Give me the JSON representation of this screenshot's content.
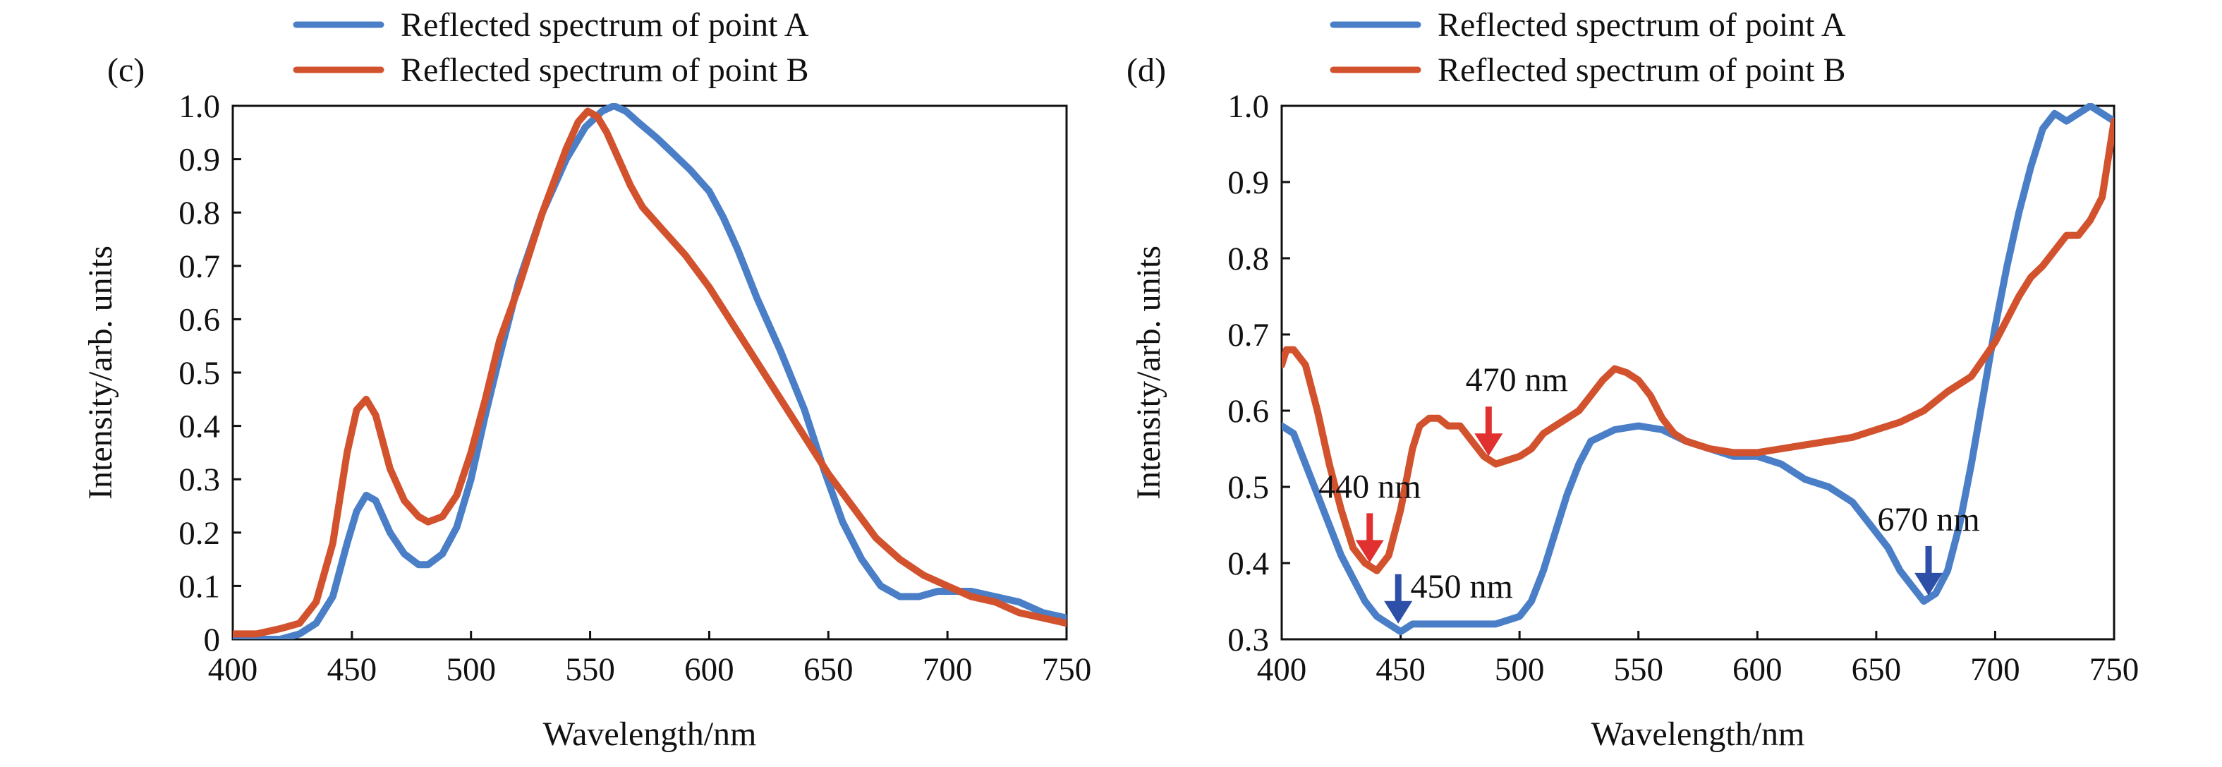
{
  "colors": {
    "point_a": "#4a7fc8",
    "point_b": "#d2522e",
    "arrow_red": "#e03030",
    "arrow_blue": "#2e4fa8",
    "axis": "#111111"
  },
  "chart_data": [
    {
      "type": "line",
      "panel_label": "(c)",
      "xlabel": "Wavelength/nm",
      "ylabel": "Intensity/arb. units",
      "xlim": [
        400,
        750
      ],
      "ylim": [
        0,
        1.0
      ],
      "xticks": [
        "400",
        "450",
        "500",
        "550",
        "600",
        "650",
        "700",
        "750"
      ],
      "yticks": [
        "0",
        "0.1",
        "0.2",
        "0.3",
        "0.4",
        "0.5",
        "0.6",
        "0.7",
        "0.8",
        "0.9",
        "1.0"
      ],
      "grid": false,
      "legend_position": "top",
      "legend": [
        "Reflected spectrum of point A",
        "Reflected spectrum of point B"
      ],
      "series": [
        {
          "name": "Reflected spectrum of point A",
          "color_key": "point_a",
          "x": [
            400,
            410,
            420,
            428,
            435,
            442,
            448,
            452,
            456,
            460,
            466,
            472,
            478,
            482,
            488,
            494,
            500,
            506,
            512,
            520,
            530,
            540,
            548,
            555,
            560,
            565,
            570,
            578,
            585,
            592,
            600,
            606,
            612,
            620,
            630,
            640,
            648,
            656,
            664,
            672,
            680,
            688,
            696,
            704,
            710,
            720,
            730,
            740,
            750
          ],
          "y": [
            0.0,
            0.0,
            0.0,
            0.01,
            0.03,
            0.08,
            0.18,
            0.24,
            0.27,
            0.26,
            0.2,
            0.16,
            0.14,
            0.14,
            0.16,
            0.21,
            0.3,
            0.42,
            0.53,
            0.67,
            0.8,
            0.9,
            0.96,
            0.99,
            1.0,
            0.99,
            0.97,
            0.94,
            0.91,
            0.88,
            0.84,
            0.79,
            0.73,
            0.64,
            0.54,
            0.43,
            0.32,
            0.22,
            0.15,
            0.1,
            0.08,
            0.08,
            0.09,
            0.09,
            0.09,
            0.08,
            0.07,
            0.05,
            0.04
          ]
        },
        {
          "name": "Reflected spectrum of point B",
          "color_key": "point_b",
          "x": [
            400,
            410,
            420,
            428,
            435,
            442,
            448,
            452,
            456,
            460,
            466,
            472,
            478,
            482,
            488,
            494,
            500,
            506,
            512,
            520,
            530,
            540,
            545,
            549,
            553,
            557,
            562,
            567,
            572,
            580,
            590,
            600,
            610,
            620,
            630,
            640,
            650,
            660,
            670,
            680,
            690,
            700,
            710,
            720,
            730,
            740,
            750
          ],
          "y": [
            0.01,
            0.01,
            0.02,
            0.03,
            0.07,
            0.18,
            0.35,
            0.43,
            0.45,
            0.42,
            0.32,
            0.26,
            0.23,
            0.22,
            0.23,
            0.27,
            0.35,
            0.45,
            0.56,
            0.66,
            0.8,
            0.92,
            0.97,
            0.99,
            0.98,
            0.95,
            0.9,
            0.85,
            0.81,
            0.77,
            0.72,
            0.66,
            0.59,
            0.52,
            0.45,
            0.38,
            0.31,
            0.25,
            0.19,
            0.15,
            0.12,
            0.1,
            0.08,
            0.07,
            0.05,
            0.04,
            0.03
          ]
        }
      ],
      "annotations": []
    },
    {
      "type": "line",
      "panel_label": "(d)",
      "xlabel": "Wavelength/nm",
      "ylabel": "Intensity/arb. units",
      "xlim": [
        400,
        750
      ],
      "ylim": [
        0.3,
        1.0
      ],
      "xticks": [
        "400",
        "450",
        "500",
        "550",
        "600",
        "650",
        "700",
        "750"
      ],
      "yticks": [
        "0.3",
        "0.4",
        "0.5",
        "0.6",
        "0.7",
        "0.8",
        "0.9",
        "1.0"
      ],
      "grid": false,
      "legend_position": "top",
      "legend": [
        "Reflected spectrum of point A",
        "Reflected spectrum of point B"
      ],
      "series": [
        {
          "name": "Reflected spectrum of point A",
          "color_key": "point_a",
          "x": [
            400,
            405,
            410,
            415,
            420,
            425,
            430,
            435,
            440,
            445,
            450,
            455,
            460,
            470,
            480,
            490,
            500,
            505,
            510,
            515,
            520,
            525,
            530,
            540,
            550,
            560,
            570,
            580,
            590,
            600,
            610,
            620,
            630,
            640,
            650,
            655,
            660,
            665,
            670,
            675,
            680,
            685,
            690,
            695,
            700,
            705,
            710,
            715,
            720,
            725,
            730,
            735,
            740,
            745,
            750
          ],
          "y": [
            0.58,
            0.57,
            0.53,
            0.49,
            0.45,
            0.41,
            0.38,
            0.35,
            0.33,
            0.32,
            0.31,
            0.32,
            0.32,
            0.32,
            0.32,
            0.32,
            0.33,
            0.35,
            0.39,
            0.44,
            0.49,
            0.53,
            0.56,
            0.575,
            0.58,
            0.575,
            0.56,
            0.55,
            0.54,
            0.54,
            0.53,
            0.51,
            0.5,
            0.48,
            0.44,
            0.42,
            0.39,
            0.37,
            0.35,
            0.36,
            0.39,
            0.45,
            0.53,
            0.62,
            0.71,
            0.79,
            0.86,
            0.92,
            0.97,
            0.99,
            0.98,
            0.99,
            1.0,
            0.99,
            0.98
          ]
        },
        {
          "name": "Reflected spectrum of point B",
          "color_key": "point_b",
          "x": [
            400,
            402,
            405,
            410,
            415,
            420,
            425,
            430,
            435,
            440,
            445,
            450,
            455,
            458,
            462,
            466,
            470,
            475,
            480,
            485,
            490,
            495,
            500,
            505,
            510,
            515,
            520,
            525,
            530,
            535,
            540,
            545,
            550,
            555,
            560,
            565,
            570,
            580,
            590,
            600,
            610,
            620,
            630,
            640,
            650,
            660,
            670,
            680,
            690,
            700,
            705,
            710,
            715,
            720,
            725,
            730,
            735,
            740,
            745,
            750
          ],
          "y": [
            0.66,
            0.68,
            0.68,
            0.66,
            0.6,
            0.53,
            0.47,
            0.42,
            0.4,
            0.39,
            0.41,
            0.47,
            0.55,
            0.58,
            0.59,
            0.59,
            0.58,
            0.58,
            0.56,
            0.54,
            0.53,
            0.535,
            0.54,
            0.55,
            0.57,
            0.58,
            0.59,
            0.6,
            0.62,
            0.64,
            0.655,
            0.65,
            0.64,
            0.62,
            0.59,
            0.57,
            0.56,
            0.55,
            0.545,
            0.545,
            0.55,
            0.555,
            0.56,
            0.565,
            0.575,
            0.585,
            0.6,
            0.625,
            0.645,
            0.69,
            0.72,
            0.75,
            0.775,
            0.79,
            0.81,
            0.83,
            0.83,
            0.85,
            0.88,
            0.98
          ]
        }
      ],
      "annotations": [
        {
          "label": "470 nm",
          "x": 487,
          "y": 0.535,
          "arrow_color_key": "arrow_red"
        },
        {
          "label": "440 nm",
          "x": 437,
          "y": 0.395,
          "arrow_color_key": "arrow_red"
        },
        {
          "label": "450 nm",
          "x": 449,
          "y": 0.315,
          "arrow_color_key": "arrow_blue"
        },
        {
          "label": "670 nm",
          "x": 672,
          "y": 0.352,
          "arrow_color_key": "arrow_blue"
        }
      ]
    }
  ]
}
